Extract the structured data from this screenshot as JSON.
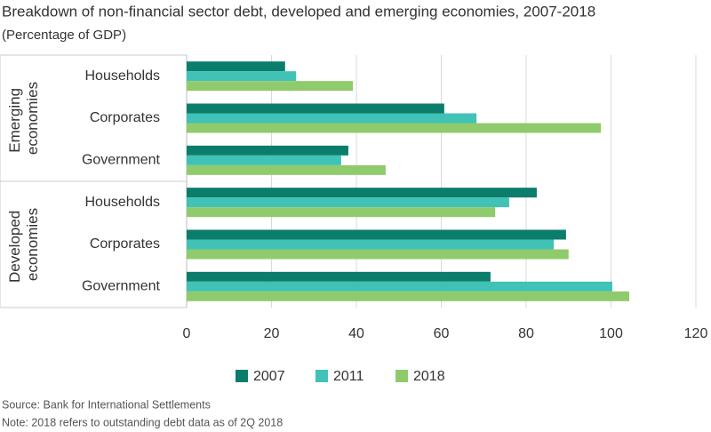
{
  "chart_data": {
    "type": "hbar",
    "title": "Breakdown of non-financial sector debt, developed and emerging economies, 2007-2018",
    "subtitle": "(Percentage of GDP)",
    "groups": [
      "Emerging economies",
      "Developed economies"
    ],
    "categories": [
      "Households",
      "Corporates",
      "Government",
      "Households",
      "Corporates",
      "Government"
    ],
    "series": [
      {
        "name": "2007",
        "color": "#0b7d6c",
        "values": [
          23.2,
          60.7,
          38.1,
          82.5,
          89.4,
          71.6
        ]
      },
      {
        "name": "2011",
        "color": "#40c2b6",
        "values": [
          25.8,
          68.3,
          36.4,
          76,
          86.5,
          100.3
        ]
      },
      {
        "name": "2018",
        "color": "#8fcb6c",
        "values": [
          39.2,
          97.6,
          46.9,
          72.7,
          90,
          104.3
        ]
      }
    ],
    "xlim": [
      0,
      120
    ],
    "xticks": [
      0,
      20,
      40,
      60,
      80,
      100,
      120
    ],
    "grid": true,
    "source": "Source: Bank for International Settlements",
    "note": "Note: 2018 refers to outstanding debt data as of 2Q 2018"
  }
}
